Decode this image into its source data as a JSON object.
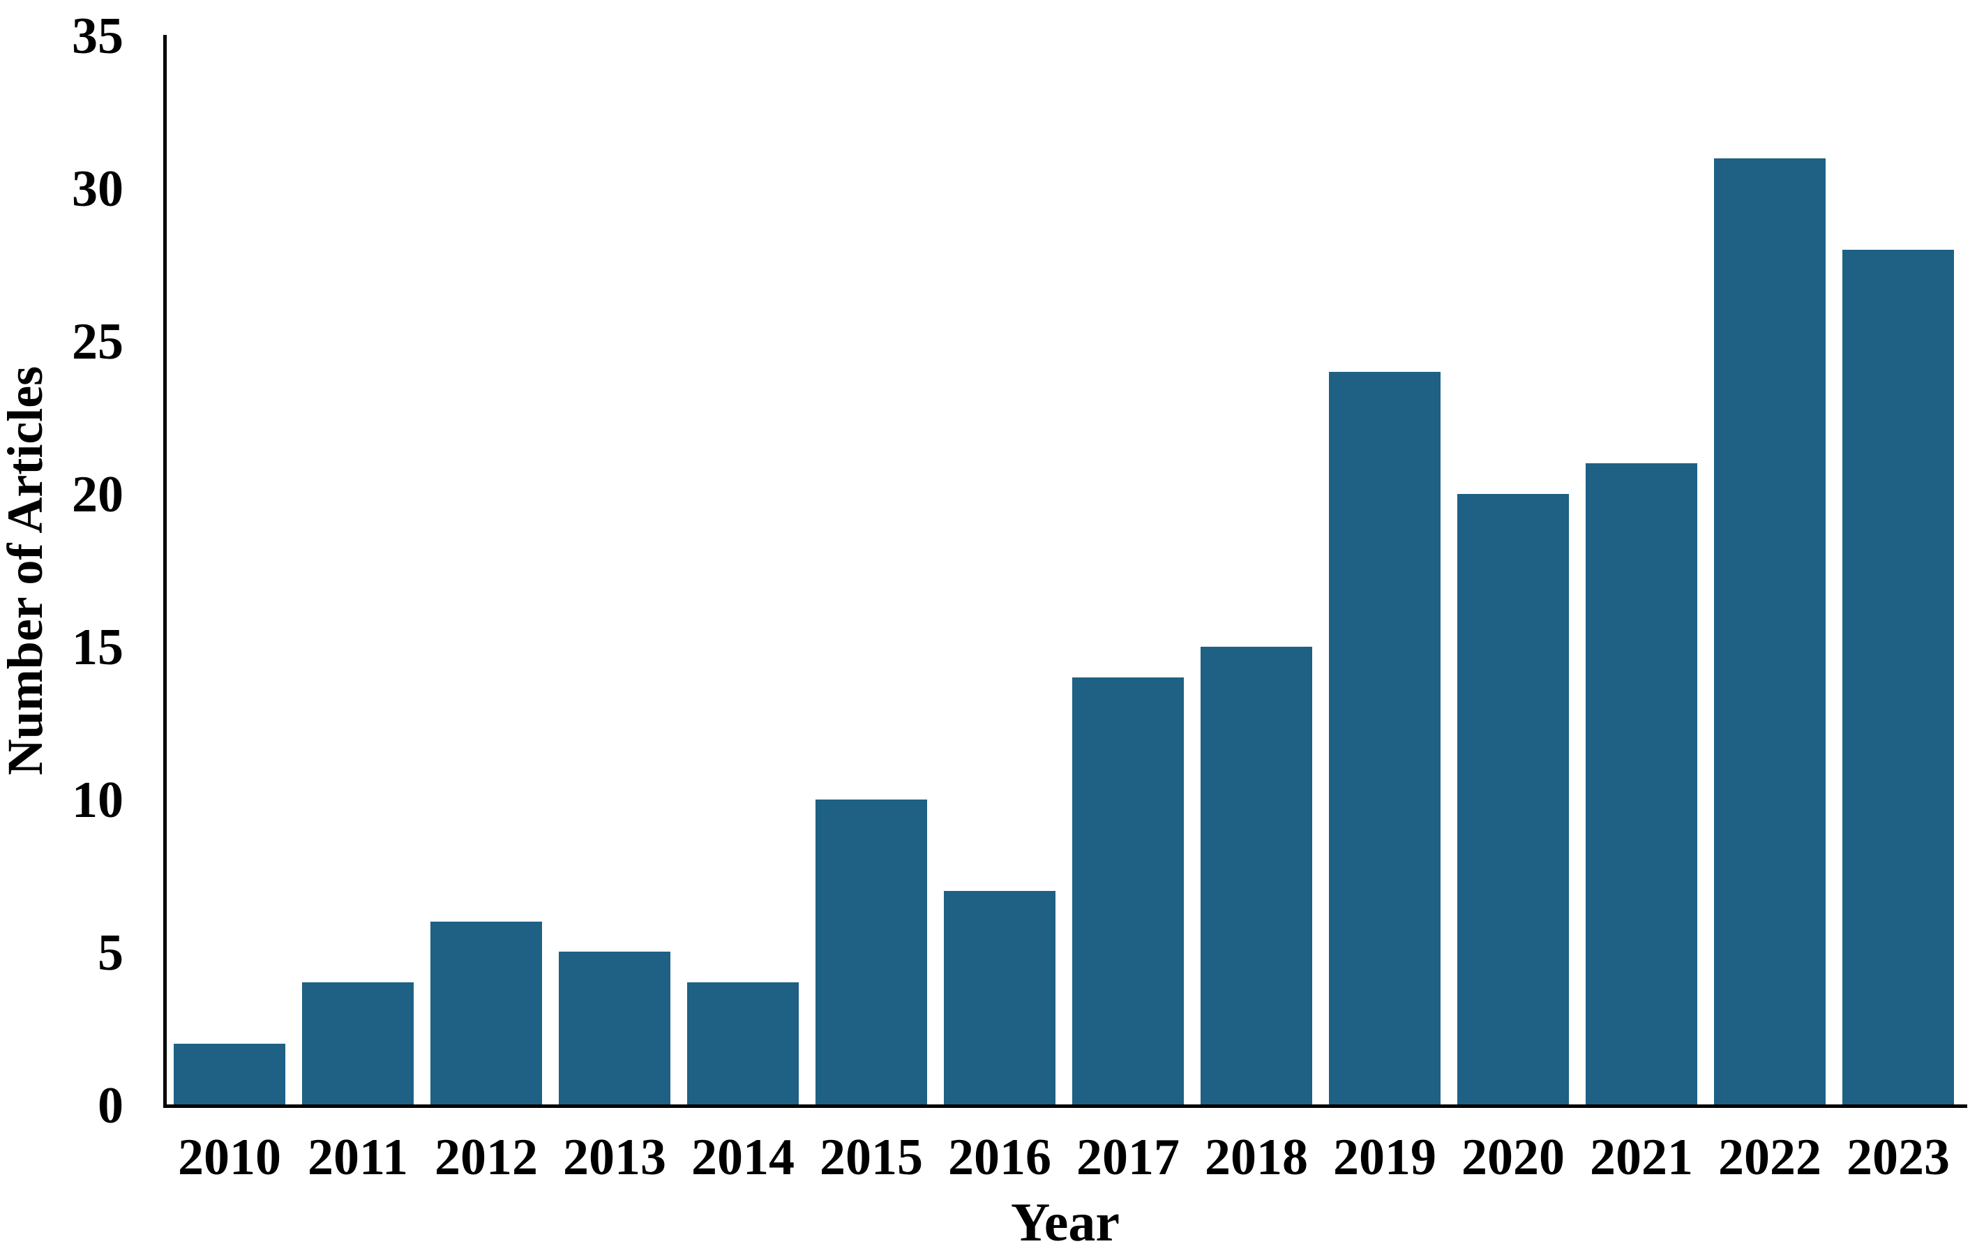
{
  "chart_data": {
    "type": "bar",
    "title": "",
    "xlabel": "Year",
    "ylabel": "Number of Articles",
    "categories": [
      "2010",
      "2011",
      "2012",
      "2013",
      "2014",
      "2015",
      "2016",
      "2017",
      "2018",
      "2019",
      "2020",
      "2021",
      "2022",
      "2023"
    ],
    "values": [
      2,
      4,
      6,
      5,
      4,
      10,
      7,
      14,
      15,
      24,
      20,
      21,
      31,
      28
    ],
    "ylim": [
      0,
      35
    ],
    "yticks": [
      0,
      5,
      10,
      15,
      20,
      25,
      30,
      35
    ],
    "legend_position": "none",
    "grid": "off",
    "bar_color": "#1e6184",
    "axis_color": "#000000",
    "text_color": "#000000",
    "background_color": "#ffffff"
  }
}
